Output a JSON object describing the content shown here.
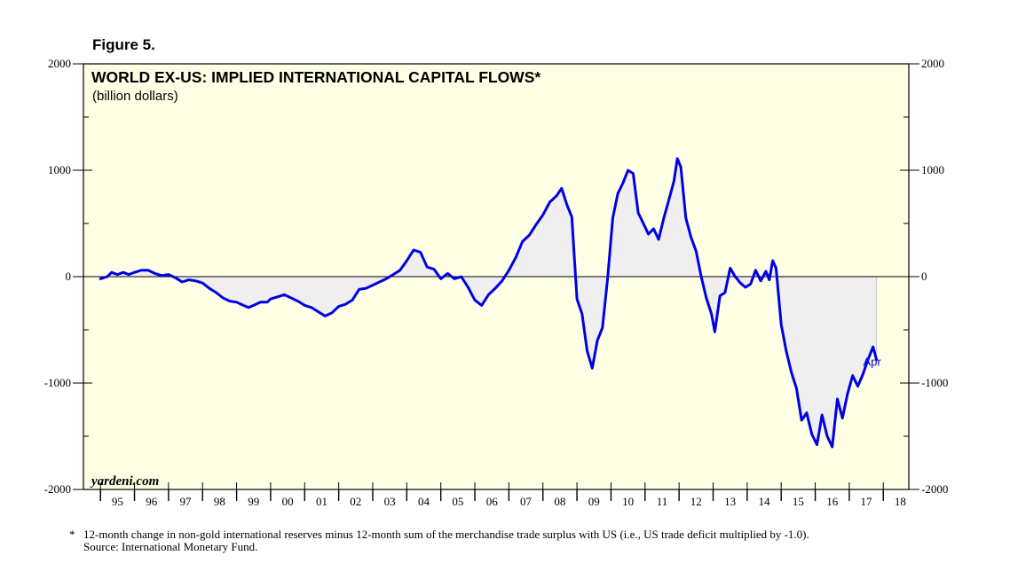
{
  "figure_label": "Figure 5.",
  "footnote": {
    "marker": "*",
    "text": "12-month change in non-gold international reserves minus 12-month sum of the merchandise trade surplus with US (i.e., US trade deficit multiplied by -1.0).",
    "source": "Source: International Monetary Fund."
  },
  "colors": {
    "plot_background": "#FFFFE5",
    "line": "#0000E6",
    "fill": "#EFEFEF",
    "frame": "#000000"
  },
  "chart_data": {
    "type": "area",
    "title": "WORLD EX-US: IMPLIED INTERNATIONAL CAPITAL FLOWS*",
    "subtitle": "(billion dollars)",
    "watermark": "yardeni.com",
    "ylabel": "billion dollars",
    "xlim": [
      1994.5,
      2018.75
    ],
    "ylim": [
      -2000,
      2000
    ],
    "yticks": [
      2000,
      1000,
      0,
      -1000,
      -2000
    ],
    "xtick_labels": [
      "95",
      "96",
      "97",
      "98",
      "99",
      "00",
      "01",
      "02",
      "03",
      "04",
      "05",
      "06",
      "07",
      "08",
      "09",
      "10",
      "11",
      "12",
      "13",
      "14",
      "15",
      "16",
      "17",
      "18"
    ],
    "annotation": {
      "text": "Apr",
      "x": 2017.25,
      "y": -780
    },
    "series": [
      {
        "name": "Implied international capital flows",
        "points": [
          [
            1995.0,
            -20
          ],
          [
            1995.2,
            0
          ],
          [
            1995.33,
            40
          ],
          [
            1995.5,
            20
          ],
          [
            1995.67,
            40
          ],
          [
            1995.83,
            20
          ],
          [
            1996.0,
            40
          ],
          [
            1996.2,
            60
          ],
          [
            1996.4,
            60
          ],
          [
            1996.6,
            30
          ],
          [
            1996.8,
            10
          ],
          [
            1997.0,
            20
          ],
          [
            1997.2,
            -10
          ],
          [
            1997.4,
            -50
          ],
          [
            1997.6,
            -30
          ],
          [
            1997.8,
            -40
          ],
          [
            1998.0,
            -60
          ],
          [
            1998.2,
            -110
          ],
          [
            1998.4,
            -150
          ],
          [
            1998.6,
            -200
          ],
          [
            1998.8,
            -230
          ],
          [
            1999.0,
            -240
          ],
          [
            1999.2,
            -270
          ],
          [
            1999.35,
            -290
          ],
          [
            1999.5,
            -270
          ],
          [
            1999.7,
            -240
          ],
          [
            1999.9,
            -240
          ],
          [
            2000.0,
            -210
          ],
          [
            2000.2,
            -190
          ],
          [
            2000.4,
            -170
          ],
          [
            2000.6,
            -200
          ],
          [
            2000.8,
            -230
          ],
          [
            2001.0,
            -270
          ],
          [
            2001.2,
            -290
          ],
          [
            2001.4,
            -330
          ],
          [
            2001.6,
            -370
          ],
          [
            2001.8,
            -340
          ],
          [
            2002.0,
            -280
          ],
          [
            2002.2,
            -260
          ],
          [
            2002.4,
            -220
          ],
          [
            2002.6,
            -120
          ],
          [
            2002.8,
            -110
          ],
          [
            2003.0,
            -80
          ],
          [
            2003.2,
            -50
          ],
          [
            2003.4,
            -20
          ],
          [
            2003.6,
            20
          ],
          [
            2003.8,
            60
          ],
          [
            2004.0,
            150
          ],
          [
            2004.2,
            250
          ],
          [
            2004.4,
            230
          ],
          [
            2004.6,
            90
          ],
          [
            2004.8,
            70
          ],
          [
            2005.0,
            -20
          ],
          [
            2005.2,
            30
          ],
          [
            2005.4,
            -20
          ],
          [
            2005.6,
            0
          ],
          [
            2005.8,
            -100
          ],
          [
            2006.0,
            -220
          ],
          [
            2006.2,
            -270
          ],
          [
            2006.4,
            -170
          ],
          [
            2006.6,
            -110
          ],
          [
            2006.8,
            -40
          ],
          [
            2007.0,
            60
          ],
          [
            2007.2,
            180
          ],
          [
            2007.4,
            330
          ],
          [
            2007.6,
            390
          ],
          [
            2007.8,
            490
          ],
          [
            2008.0,
            580
          ],
          [
            2008.2,
            700
          ],
          [
            2008.4,
            760
          ],
          [
            2008.55,
            830
          ],
          [
            2008.7,
            680
          ],
          [
            2008.85,
            560
          ],
          [
            2009.0,
            -210
          ],
          [
            2009.15,
            -350
          ],
          [
            2009.3,
            -700
          ],
          [
            2009.45,
            -860
          ],
          [
            2009.6,
            -600
          ],
          [
            2009.75,
            -480
          ],
          [
            2009.9,
            -20
          ],
          [
            2010.05,
            550
          ],
          [
            2010.2,
            780
          ],
          [
            2010.35,
            880
          ],
          [
            2010.5,
            1000
          ],
          [
            2010.65,
            970
          ],
          [
            2010.8,
            600
          ],
          [
            2010.95,
            500
          ],
          [
            2011.1,
            400
          ],
          [
            2011.25,
            450
          ],
          [
            2011.4,
            350
          ],
          [
            2011.55,
            550
          ],
          [
            2011.7,
            720
          ],
          [
            2011.85,
            900
          ],
          [
            2011.95,
            1110
          ],
          [
            2012.05,
            1030
          ],
          [
            2012.2,
            550
          ],
          [
            2012.35,
            370
          ],
          [
            2012.5,
            240
          ],
          [
            2012.65,
            0
          ],
          [
            2012.8,
            -200
          ],
          [
            2012.95,
            -350
          ],
          [
            2013.05,
            -520
          ],
          [
            2013.2,
            -180
          ],
          [
            2013.35,
            -150
          ],
          [
            2013.5,
            80
          ],
          [
            2013.65,
            0
          ],
          [
            2013.8,
            -60
          ],
          [
            2013.95,
            -100
          ],
          [
            2014.1,
            -70
          ],
          [
            2014.25,
            60
          ],
          [
            2014.4,
            -40
          ],
          [
            2014.55,
            50
          ],
          [
            2014.65,
            -30
          ],
          [
            2014.75,
            150
          ],
          [
            2014.85,
            80
          ],
          [
            2015.0,
            -450
          ],
          [
            2015.15,
            -700
          ],
          [
            2015.3,
            -900
          ],
          [
            2015.45,
            -1050
          ],
          [
            2015.6,
            -1350
          ],
          [
            2015.75,
            -1280
          ],
          [
            2015.9,
            -1480
          ],
          [
            2016.05,
            -1580
          ],
          [
            2016.2,
            -1300
          ],
          [
            2016.35,
            -1500
          ],
          [
            2016.5,
            -1600
          ],
          [
            2016.65,
            -1150
          ],
          [
            2016.8,
            -1330
          ],
          [
            2016.95,
            -1100
          ],
          [
            2017.1,
            -930
          ],
          [
            2017.25,
            -1030
          ],
          [
            2017.4,
            -920
          ],
          [
            2017.55,
            -780
          ],
          [
            2017.7,
            -660
          ],
          [
            2017.8,
            -780
          ]
        ]
      }
    ]
  }
}
